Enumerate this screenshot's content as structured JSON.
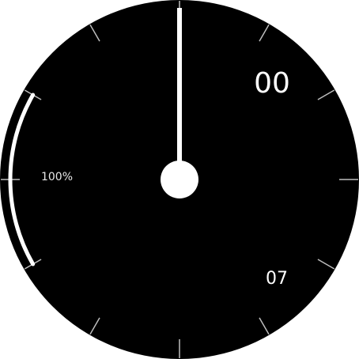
{
  "watch": {
    "minutes": "00",
    "seconds": "07",
    "battery_text": "100%",
    "battery_level": 1.0,
    "hand_angle_deg": 0
  },
  "colors": {
    "face": "#000000",
    "background": "#ffffff",
    "hand": "#ffffff",
    "ticks": "#bdbdbd",
    "text": "#ffffff"
  }
}
